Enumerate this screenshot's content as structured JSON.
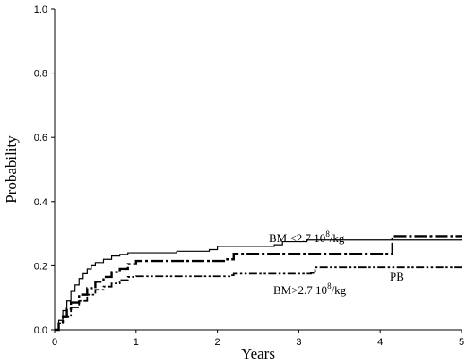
{
  "chart_data": {
    "type": "line",
    "xlabel": "Years",
    "ylabel": "Probability",
    "xlim": [
      0,
      5
    ],
    "ylim": [
      0,
      1
    ],
    "xticks": [
      "0",
      "1",
      "2",
      "3",
      "4",
      "5"
    ],
    "yticks": [
      "0.0",
      "0.2",
      "0.4",
      "0.6",
      "0.8",
      "1.0"
    ],
    "grid": false,
    "annotations": [
      {
        "text": "BM <2.7 10",
        "sup": "8",
        "tail": "/kg"
      },
      {
        "text": "PB",
        "sup": "",
        "tail": ""
      },
      {
        "text": "BM>2.7 10",
        "sup": "8",
        "tail": "/kg"
      }
    ],
    "series": [
      {
        "style": "thin-solid",
        "points": [
          [
            0,
            0
          ],
          [
            0.05,
            0.03
          ],
          [
            0.1,
            0.06
          ],
          [
            0.15,
            0.09
          ],
          [
            0.2,
            0.12
          ],
          [
            0.25,
            0.14
          ],
          [
            0.3,
            0.16
          ],
          [
            0.35,
            0.175
          ],
          [
            0.4,
            0.19
          ],
          [
            0.45,
            0.2
          ],
          [
            0.5,
            0.21
          ],
          [
            0.6,
            0.22
          ],
          [
            0.7,
            0.23
          ],
          [
            0.8,
            0.235
          ],
          [
            0.9,
            0.24
          ],
          [
            1.0,
            0.24
          ],
          [
            1.5,
            0.245
          ],
          [
            1.9,
            0.25
          ],
          [
            2.0,
            0.26
          ],
          [
            2.7,
            0.265
          ],
          [
            2.8,
            0.275
          ],
          [
            3.1,
            0.28
          ],
          [
            5.0,
            0.282
          ]
        ]
      },
      {
        "style": "thick-dash-dot",
        "points": [
          [
            0,
            0
          ],
          [
            0.05,
            0.02
          ],
          [
            0.1,
            0.04
          ],
          [
            0.15,
            0.065
          ],
          [
            0.2,
            0.085
          ],
          [
            0.3,
            0.11
          ],
          [
            0.4,
            0.13
          ],
          [
            0.5,
            0.15
          ],
          [
            0.6,
            0.165
          ],
          [
            0.7,
            0.18
          ],
          [
            0.8,
            0.19
          ],
          [
            0.9,
            0.205
          ],
          [
            1.0,
            0.215
          ],
          [
            2.1,
            0.22
          ],
          [
            2.2,
            0.237
          ],
          [
            4.1,
            0.237
          ],
          [
            4.15,
            0.292
          ],
          [
            5.0,
            0.292
          ]
        ]
      },
      {
        "style": "dash-dot-dot",
        "points": [
          [
            0,
            0
          ],
          [
            0.05,
            0.02
          ],
          [
            0.1,
            0.04
          ],
          [
            0.2,
            0.07
          ],
          [
            0.3,
            0.09
          ],
          [
            0.4,
            0.11
          ],
          [
            0.5,
            0.125
          ],
          [
            0.6,
            0.135
          ],
          [
            0.7,
            0.145
          ],
          [
            0.8,
            0.155
          ],
          [
            0.9,
            0.165
          ],
          [
            1.0,
            0.167
          ],
          [
            2.15,
            0.17
          ],
          [
            2.2,
            0.175
          ],
          [
            3.15,
            0.177
          ],
          [
            3.2,
            0.195
          ],
          [
            5.0,
            0.195
          ]
        ]
      }
    ]
  }
}
